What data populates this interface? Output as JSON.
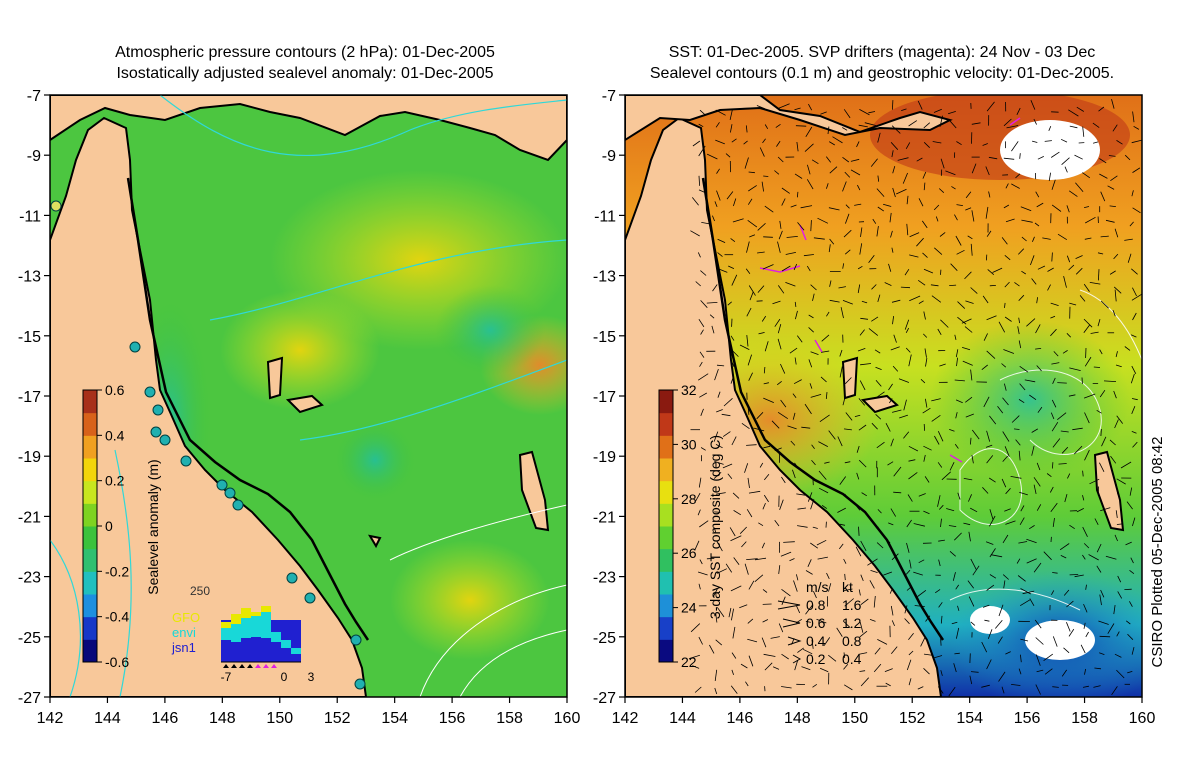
{
  "left_panel": {
    "title_line1": "Atmospheric pressure contours (2 hPa): 01-Dec-2005",
    "title_line2": "Isostatically adjusted sealevel anomaly: 01-Dec-2005",
    "x_ticks": [
      "142",
      "144",
      "146",
      "148",
      "150",
      "152",
      "154",
      "156",
      "158",
      "160"
    ],
    "y_ticks": [
      "-7",
      "-9",
      "-11",
      "-13",
      "-15",
      "-17",
      "-19",
      "-21",
      "-23",
      "-25",
      "-27"
    ],
    "colorbar": {
      "label": "Sealevel anomaly (m)",
      "ticks": [
        "0.6",
        "0.4",
        "0.2",
        "0",
        "-0.2",
        "-0.4",
        "-0.6"
      ],
      "colors": [
        "#08087a",
        "#1638c8",
        "#1d8fe0",
        "#21bfbf",
        "#2fbf70",
        "#3cc23c",
        "#7ed321",
        "#c8e61e",
        "#f2d50a",
        "#f0a020",
        "#d8621a",
        "#a8301a"
      ]
    },
    "inset": {
      "count_label": "250",
      "legend": [
        {
          "label": "GFO",
          "color": "#e8e800"
        },
        {
          "label": "envi",
          "color": "#18d8d8"
        },
        {
          "label": "jsn1",
          "color": "#2020d0"
        }
      ],
      "x_ticks": [
        "-7",
        "0",
        "3"
      ]
    }
  },
  "right_panel": {
    "title_line1": "SST: 01-Dec-2005. SVP drifters (magenta): 24 Nov - 03 Dec",
    "title_line2": "Sealevel contours (0.1 m) and geostrophic velocity: 01-Dec-2005.",
    "x_ticks": [
      "142",
      "144",
      "146",
      "148",
      "150",
      "152",
      "154",
      "156",
      "158",
      "160"
    ],
    "y_ticks": [
      "-7",
      "-9",
      "-11",
      "-13",
      "-15",
      "-17",
      "-19",
      "-21",
      "-23",
      "-25",
      "-27"
    ],
    "colorbar": {
      "label": "3-day SST composite (deg C)",
      "ticks": [
        "32",
        "30",
        "28",
        "26",
        "24",
        "22"
      ],
      "colors": [
        "#0a0a80",
        "#1840c8",
        "#1e90d8",
        "#20c0b0",
        "#30c060",
        "#60d030",
        "#a8e020",
        "#e8e010",
        "#f0b020",
        "#e07018",
        "#c03818",
        "#8a1a10"
      ]
    },
    "velocity_legend": {
      "header_ms": "m/s",
      "header_kt": "kt",
      "rows": [
        {
          "ms": "0.8",
          "kt": "1.6"
        },
        {
          "ms": "0.6",
          "kt": "1.2"
        },
        {
          "ms": "0.4",
          "kt": "0.8"
        },
        {
          "ms": "0.2",
          "kt": "0.4"
        }
      ]
    }
  },
  "footer_credit": "CSIRO Plotted 05-Dec-2005 08:42",
  "colors": {
    "land": "#f8c89a",
    "ocean_base": "#4cc640",
    "coast": "#000000"
  }
}
